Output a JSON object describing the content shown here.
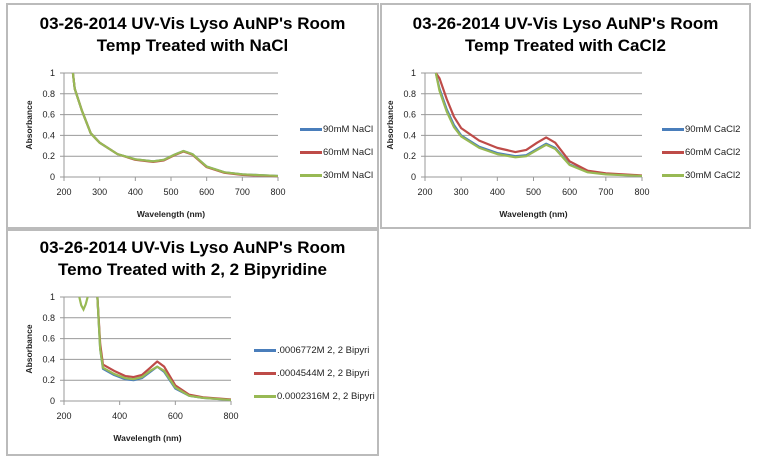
{
  "chart_data": [
    {
      "type": "line",
      "title_lines": [
        "03-26-2014 UV-Vis Lyso AuNP's Room",
        "Temp Treated with NaCl"
      ],
      "xlabel": "Wavelength (nm)",
      "ylabel": "Absorbance",
      "xlim": [
        200,
        800
      ],
      "ylim": [
        0,
        1
      ],
      "xticks": [
        200,
        300,
        400,
        500,
        600,
        700,
        800
      ],
      "yticks": [
        0,
        0.2,
        0.4,
        0.6,
        0.8,
        1
      ],
      "legend": "right",
      "x": [
        225,
        230,
        250,
        275,
        300,
        350,
        400,
        450,
        480,
        510,
        535,
        560,
        600,
        650,
        700,
        800
      ],
      "series": [
        {
          "name": "90mM NaCl",
          "color": "#4a7ebb",
          "values": [
            1,
            0.85,
            0.64,
            0.42,
            0.33,
            0.22,
            0.17,
            0.15,
            0.165,
            0.215,
            0.25,
            0.22,
            0.1,
            0.045,
            0.025,
            0.01
          ]
        },
        {
          "name": "60mM NaCl",
          "color": "#be4b48",
          "values": [
            1,
            0.85,
            0.64,
            0.42,
            0.33,
            0.22,
            0.165,
            0.145,
            0.16,
            0.21,
            0.245,
            0.215,
            0.095,
            0.04,
            0.02,
            0.008
          ]
        },
        {
          "name": "30mM NaCl",
          "color": "#98b954",
          "values": [
            1,
            0.85,
            0.64,
            0.42,
            0.33,
            0.22,
            0.17,
            0.15,
            0.165,
            0.215,
            0.25,
            0.22,
            0.1,
            0.045,
            0.025,
            0.01
          ]
        }
      ]
    },
    {
      "type": "line",
      "title_lines": [
        "03-26-2014 UV-Vis Lyso AuNP's Room",
        "Temp Treated with CaCl2"
      ],
      "xlabel": "Wavelength (nm)",
      "ylabel": "Absorbance",
      "xlim": [
        200,
        800
      ],
      "ylim": [
        0,
        1
      ],
      "xticks": [
        200,
        300,
        400,
        500,
        600,
        700,
        800
      ],
      "yticks": [
        0,
        0.2,
        0.4,
        0.6,
        0.8,
        1
      ],
      "legend": "right",
      "x": [
        230,
        240,
        260,
        280,
        300,
        350,
        400,
        450,
        480,
        510,
        535,
        560,
        600,
        650,
        700,
        800
      ],
      "series": [
        {
          "name": "90mM CaCl2",
          "color": "#4a7ebb",
          "values": [
            1,
            0.85,
            0.65,
            0.5,
            0.4,
            0.29,
            0.23,
            0.2,
            0.21,
            0.27,
            0.32,
            0.28,
            0.12,
            0.05,
            0.03,
            0.01
          ]
        },
        {
          "name": "60mM CaCl2",
          "color": "#be4b48",
          "values": [
            1,
            0.95,
            0.75,
            0.58,
            0.47,
            0.35,
            0.28,
            0.24,
            0.26,
            0.33,
            0.38,
            0.33,
            0.15,
            0.06,
            0.035,
            0.015
          ]
        },
        {
          "name": "30mM CaCl2",
          "color": "#98b954",
          "values": [
            1,
            0.83,
            0.63,
            0.48,
            0.39,
            0.28,
            0.22,
            0.19,
            0.2,
            0.26,
            0.31,
            0.27,
            0.115,
            0.045,
            0.025,
            0.01
          ]
        }
      ]
    },
    {
      "type": "line",
      "title_lines": [
        "03-26-2014 UV-Vis Lyso AuNP's Room",
        "Temo Treated with 2, 2 Bipyridine"
      ],
      "xlabel": "Wavelength (nm)",
      "ylabel": "Absorbance",
      "xlim": [
        200,
        800
      ],
      "ylim": [
        0,
        1
      ],
      "xticks": [
        200,
        400,
        600,
        800
      ],
      "yticks": [
        0,
        0.2,
        0.4,
        0.6,
        0.8,
        1
      ],
      "legend": "right",
      "x": [
        320,
        330,
        340,
        380,
        420,
        450,
        480,
        510,
        535,
        560,
        600,
        650,
        700,
        800
      ],
      "series": [
        {
          "name": ".0006772M 2, 2 Bipyri",
          "color": "#4a7ebb",
          "values": [
            1,
            0.5,
            0.31,
            0.25,
            0.21,
            0.2,
            0.22,
            0.28,
            0.33,
            0.28,
            0.12,
            0.05,
            0.03,
            0.01
          ]
        },
        {
          "name": ".0004544M 2, 2 Bipyri",
          "color": "#be4b48",
          "values": [
            1,
            0.55,
            0.35,
            0.29,
            0.24,
            0.23,
            0.25,
            0.32,
            0.38,
            0.33,
            0.15,
            0.06,
            0.035,
            0.015
          ]
        },
        {
          "name": "0.0002316M 2, 2 Bipyri",
          "color": "#98b954",
          "values": [
            1,
            0.5,
            0.32,
            0.26,
            0.22,
            0.21,
            0.23,
            0.29,
            0.33,
            0.29,
            0.13,
            0.05,
            0.03,
            0.01
          ]
        }
      ],
      "extra_segment": {
        "series": "0.0002316M 2, 2 Bipyri",
        "x": [
          255,
          262,
          270,
          278,
          285
        ],
        "values": [
          1,
          0.92,
          0.88,
          0.93,
          1
        ]
      }
    }
  ]
}
